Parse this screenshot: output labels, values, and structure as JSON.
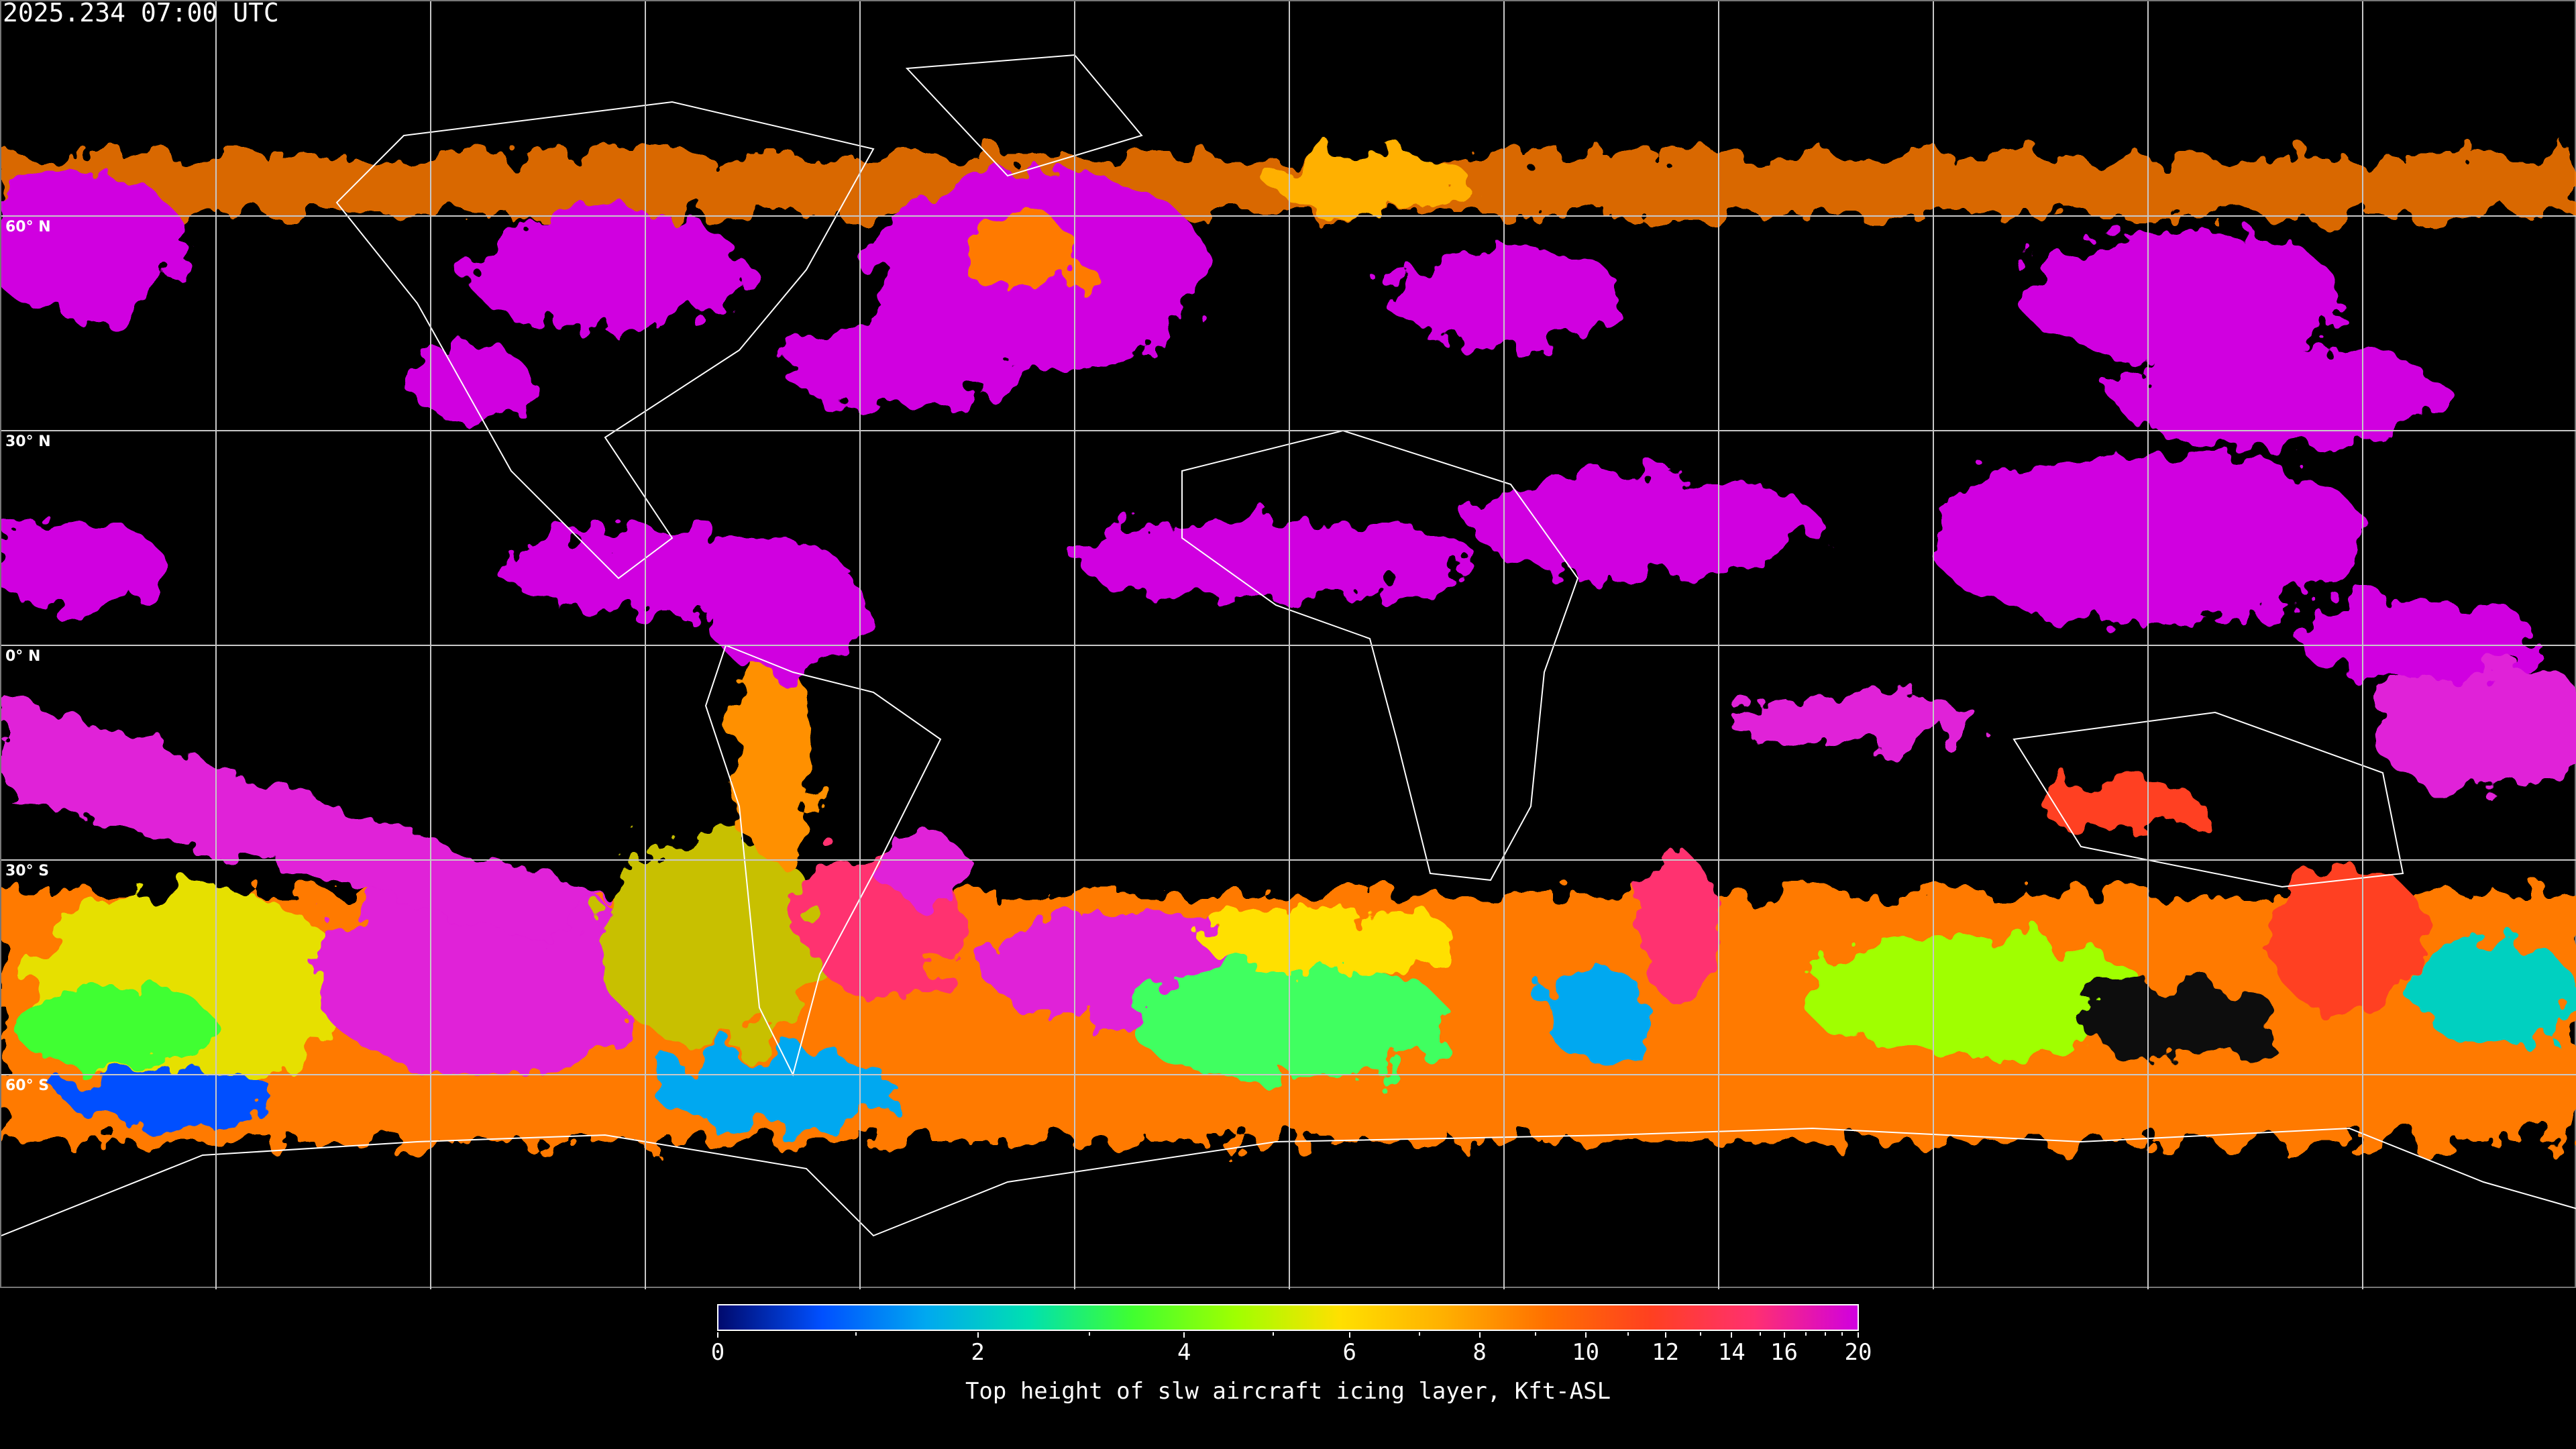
{
  "header": {
    "timestamp": "2025.234 07:00 UTC"
  },
  "map": {
    "projection": "equirectangular",
    "gridlines_deg": 30,
    "lat_labels": [
      "60° N",
      "30° N",
      "0° N",
      "30° S",
      "60° S"
    ],
    "coastline_color": "#ffffff",
    "background": "#000000"
  },
  "colorbar": {
    "label": "Top height of slw aircraft icing layer, Kft-ASL",
    "range": [
      0,
      20
    ],
    "major_ticks": [
      "0",
      "2",
      "4",
      "6",
      "8",
      "10",
      "12",
      "14",
      "16",
      "20"
    ],
    "minor_ticks": [
      1,
      3,
      5,
      7,
      9,
      11,
      13,
      15,
      17,
      18,
      19
    ],
    "colors": [
      "#000a6e",
      "#0050ff",
      "#00a8f0",
      "#00e0b0",
      "#40ff30",
      "#a0ff00",
      "#ffe000",
      "#ffb000",
      "#ff7000",
      "#ff4020",
      "#ff3070",
      "#d000e0"
    ]
  }
}
